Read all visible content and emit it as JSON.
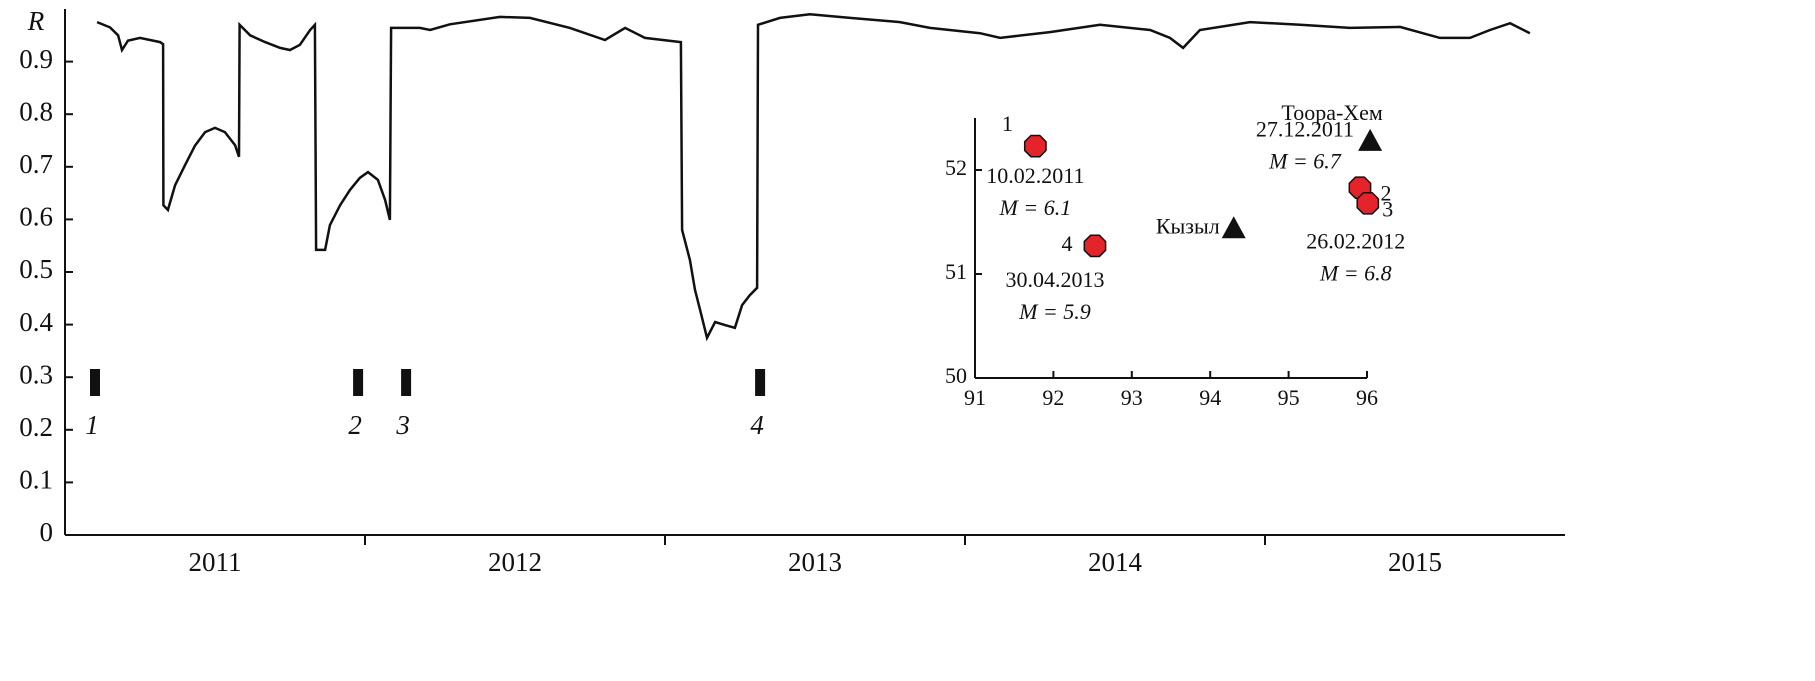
{
  "chart_data": [
    {
      "type": "line",
      "y_label": "R",
      "categories": [
        "2011",
        "2012",
        "2013",
        "2014",
        "2015"
      ],
      "xlim": [
        2011,
        2016
      ],
      "xticks": [
        2012,
        2013,
        2014,
        2015
      ],
      "ylim": [
        0,
        1
      ],
      "yticks": [
        0,
        0.1,
        0.2,
        0.3,
        0.4,
        0.5,
        0.6,
        0.7,
        0.8,
        0.9
      ],
      "color": "#111111",
      "x": [
        2011.107,
        2011.15,
        2011.177,
        2011.19,
        2011.21,
        2011.25,
        2011.317,
        2011.327,
        2011.328,
        2011.343,
        2011.367,
        2011.4,
        2011.433,
        2011.467,
        2011.5,
        2011.533,
        2011.567,
        2011.58,
        2011.582,
        2011.617,
        2011.667,
        2011.717,
        2011.75,
        2011.783,
        2011.817,
        2011.833,
        2011.837,
        2011.867,
        2011.883,
        2011.917,
        2011.95,
        2011.983,
        2012.01,
        2012.043,
        2012.067,
        2012.083,
        2012.087,
        2012.183,
        2012.217,
        2012.283,
        2012.45,
        2012.55,
        2012.683,
        2012.8,
        2012.867,
        2012.933,
        2013.053,
        2013.057,
        2013.083,
        2013.1,
        2013.117,
        2013.14,
        2013.167,
        2013.2,
        2013.233,
        2013.257,
        2013.283,
        2013.307,
        2013.31,
        2013.383,
        2013.483,
        2013.617,
        2013.783,
        2013.883,
        2014.05,
        2014.117,
        2014.283,
        2014.45,
        2014.617,
        2014.683,
        2014.727,
        2014.783,
        2014.95,
        2015.117,
        2015.283,
        2015.45,
        2015.583,
        2015.683,
        2015.75,
        2015.817,
        2015.883
      ],
      "values": [
        0.975,
        0.965,
        0.95,
        0.922,
        0.94,
        0.945,
        0.937,
        0.933,
        0.627,
        0.618,
        0.665,
        0.703,
        0.74,
        0.766,
        0.774,
        0.766,
        0.741,
        0.719,
        0.97,
        0.95,
        0.937,
        0.926,
        0.922,
        0.932,
        0.96,
        0.97,
        0.542,
        0.542,
        0.589,
        0.627,
        0.656,
        0.679,
        0.69,
        0.675,
        0.637,
        0.599,
        0.964,
        0.964,
        0.96,
        0.971,
        0.985,
        0.983,
        0.964,
        0.941,
        0.964,
        0.945,
        0.937,
        0.58,
        0.523,
        0.466,
        0.428,
        0.375,
        0.405,
        0.399,
        0.394,
        0.437,
        0.456,
        0.47,
        0.97,
        0.983,
        0.99,
        0.983,
        0.975,
        0.964,
        0.954,
        0.945,
        0.956,
        0.97,
        0.96,
        0.945,
        0.926,
        0.96,
        0.975,
        0.97,
        0.964,
        0.966,
        0.945,
        0.945,
        0.96,
        0.973,
        0.954
      ],
      "events": [
        {
          "label": "1",
          "x": 2011.1
        },
        {
          "label": "2",
          "x": 2011.977
        },
        {
          "label": "3",
          "x": 2012.137
        },
        {
          "label": "4",
          "x": 2013.317
        }
      ]
    },
    {
      "type": "scatter",
      "xlim": [
        91,
        96
      ],
      "xticks": [
        91,
        92,
        93,
        94,
        95,
        96
      ],
      "ylim": [
        50,
        52.5
      ],
      "yticks": [
        50,
        51,
        52
      ],
      "color": "#e5232b",
      "points": [
        {
          "label": "1",
          "x": 91.77,
          "y": 52.23,
          "date": "10.02.2011",
          "magnitude": "M = 6.1"
        },
        {
          "label": "2",
          "x": 95.91,
          "y": 51.83,
          "date": "27.12.2011",
          "magnitude": "M = 6.7"
        },
        {
          "label": "3",
          "x": 96.01,
          "y": 51.68,
          "date": "26.02.2012",
          "magnitude": "M = 6.8"
        },
        {
          "label": "4",
          "x": 92.53,
          "y": 51.27,
          "date": "30.04.2013",
          "magnitude": "M = 5.9"
        }
      ],
      "stations": [
        {
          "name": "Тоора-Хем",
          "x": 96.04,
          "y": 52.28
        },
        {
          "name": "Кызыл",
          "x": 94.3,
          "y": 51.44
        }
      ]
    }
  ]
}
